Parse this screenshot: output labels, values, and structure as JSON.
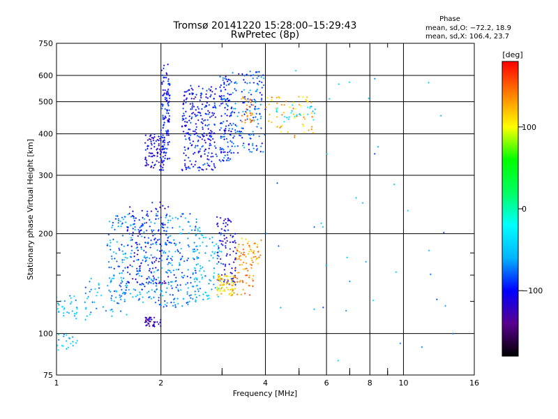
{
  "chart_data": {
    "type": "scatter",
    "title": "Tromsø 20141220 15:28:00–15:29:43",
    "subtitle": "RwPretec (8p)",
    "xlabel": "Frequency [MHz]",
    "ylabel": "Stationary phase Virtual Height [km]",
    "x_scale": "log",
    "y_scale": "log",
    "xlim": [
      1,
      16
    ],
    "ylim": [
      75,
      750
    ],
    "x_ticks": [
      1,
      2,
      4,
      6,
      8,
      10,
      16
    ],
    "x_tick_labels": [
      "1",
      "2",
      "4",
      "6",
      "8",
      "10",
      "16"
    ],
    "x_minor_ticks": [
      3,
      5,
      7,
      9
    ],
    "y_ticks": [
      75,
      100,
      200,
      300,
      400,
      500,
      600,
      750
    ],
    "y_tick_labels": [
      "75",
      "100",
      "200",
      "300",
      "400",
      "500",
      "600",
      "750"
    ],
    "y_minor_ticks": [
      125,
      150,
      175
    ],
    "grid": true,
    "phase_stats": {
      "heading": "Phase",
      "line_o": "mean, sd,O: −72.2, 18.9",
      "line_x": "mean, sd,X: 106.4, 23.7"
    },
    "colorbar": {
      "label": "[deg]",
      "range": [
        -180,
        180
      ],
      "ticks": [
        100,
        0,
        -100
      ],
      "tick_labels": [
        "100",
        "0",
        "−100"
      ],
      "colormap": [
        "#000000",
        "#5a0090",
        "#0000ff",
        "#00b4ff",
        "#00ffff",
        "#00ff60",
        "#00ff00",
        "#ffff00",
        "#ff8000",
        "#ff0000"
      ]
    },
    "clusters": [
      {
        "x_range": [
          2.0,
          2.12
        ],
        "y_range": [
          330,
          650
        ],
        "phase": -100,
        "count": 120
      },
      {
        "x_range": [
          1.8,
          2.05
        ],
        "y_range": [
          310,
          400
        ],
        "phase": -110,
        "count": 90
      },
      {
        "x_range": [
          2.3,
          2.9
        ],
        "y_range": [
          310,
          560
        ],
        "phase": -100,
        "count": 260
      },
      {
        "x_range": [
          2.95,
          3.2
        ],
        "y_range": [
          330,
          600
        ],
        "phase": -90,
        "count": 120
      },
      {
        "x_range": [
          3.2,
          4.0
        ],
        "y_range": [
          350,
          620
        ],
        "phase": -80,
        "count": 150
      },
      {
        "x_range": [
          3.4,
          3.7
        ],
        "y_range": [
          430,
          520
        ],
        "phase": 140,
        "count": 30
      },
      {
        "x_range": [
          4.0,
          5.5
        ],
        "y_range": [
          390,
          520
        ],
        "phase": 120,
        "count": 60
      },
      {
        "x_range": [
          4.2,
          5.6
        ],
        "y_range": [
          430,
          490
        ],
        "phase": -30,
        "count": 25
      },
      {
        "x_range": [
          1.4,
          2.6
        ],
        "y_range": [
          120,
          230
        ],
        "phase": -70,
        "count": 430
      },
      {
        "x_range": [
          1.6,
          2.1
        ],
        "y_range": [
          140,
          250
        ],
        "phase": -110,
        "count": 120
      },
      {
        "x_range": [
          2.5,
          3.0
        ],
        "y_range": [
          125,
          200
        ],
        "phase": -50,
        "count": 80
      },
      {
        "x_range": [
          2.9,
          3.3
        ],
        "y_range": [
          140,
          230
        ],
        "phase": -110,
        "count": 90
      },
      {
        "x_range": [
          2.9,
          3.25
        ],
        "y_range": [
          130,
          150
        ],
        "phase": 110,
        "count": 60
      },
      {
        "x_range": [
          3.3,
          3.9
        ],
        "y_range": [
          160,
          195
        ],
        "phase": 130,
        "count": 60
      },
      {
        "x_range": [
          3.2,
          3.7
        ],
        "y_range": [
          130,
          160
        ],
        "phase": 140,
        "count": 40
      },
      {
        "x_range": [
          1.2,
          1.6
        ],
        "y_range": [
          110,
          150
        ],
        "phase": -60,
        "count": 50
      },
      {
        "x_range": [
          1.0,
          1.15
        ],
        "y_range": [
          110,
          130
        ],
        "phase": -50,
        "count": 30
      },
      {
        "x_range": [
          1.8,
          2.0
        ],
        "y_range": [
          105,
          112
        ],
        "phase": -120,
        "count": 40
      },
      {
        "x_range": [
          1.0,
          1.15
        ],
        "y_range": [
          88,
          100
        ],
        "phase": -50,
        "count": 20
      },
      {
        "x_range": [
          4.0,
          14.0
        ],
        "y_range": [
          80,
          650
        ],
        "phase": -60,
        "count": 40
      }
    ]
  }
}
